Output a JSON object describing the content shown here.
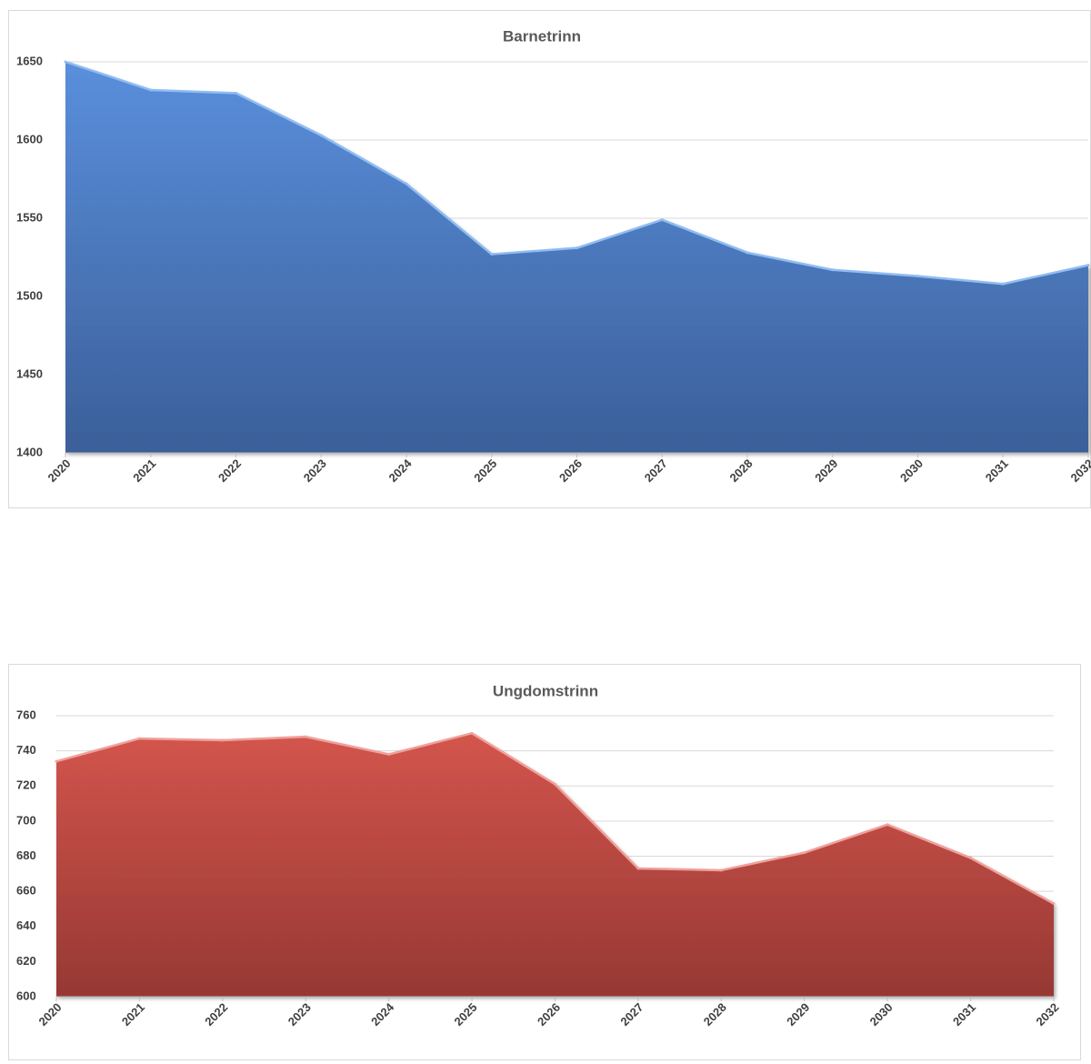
{
  "chart_data": [
    {
      "type": "area",
      "title": "Barnetrinn",
      "xlabel": "",
      "ylabel": "",
      "categories": [
        "2020",
        "2021",
        "2022",
        "2023",
        "2024",
        "2025",
        "2026",
        "2027",
        "2028",
        "2029",
        "2030",
        "2031",
        "2032"
      ],
      "values": [
        1650,
        1632,
        1630,
        1603,
        1572,
        1527,
        1531,
        1549,
        1528,
        1517,
        1513,
        1508,
        1520
      ],
      "ylim": [
        1400,
        1650
      ],
      "yticks": [
        1400,
        1450,
        1500,
        1550,
        1600,
        1650
      ],
      "grid": true,
      "legend": "none",
      "color_top": "#5a8fdc",
      "color_bottom": "#3b5f99",
      "line_color": "#8fbcf2"
    },
    {
      "type": "area",
      "title": "Ungdomstrinn",
      "xlabel": "",
      "ylabel": "",
      "categories": [
        "2020",
        "2021",
        "2022",
        "2023",
        "2024",
        "2025",
        "2026",
        "2027",
        "2028",
        "2029",
        "2030",
        "2031",
        "2032"
      ],
      "values": [
        734,
        747,
        746,
        748,
        738,
        750,
        721,
        673,
        672,
        682,
        698,
        679,
        653
      ],
      "ylim": [
        600,
        760
      ],
      "yticks": [
        600,
        620,
        640,
        660,
        680,
        700,
        720,
        740,
        760
      ],
      "grid": true,
      "legend": "none",
      "color_top": "#d3554d",
      "color_bottom": "#963833",
      "line_color": "#f0a09a"
    }
  ]
}
